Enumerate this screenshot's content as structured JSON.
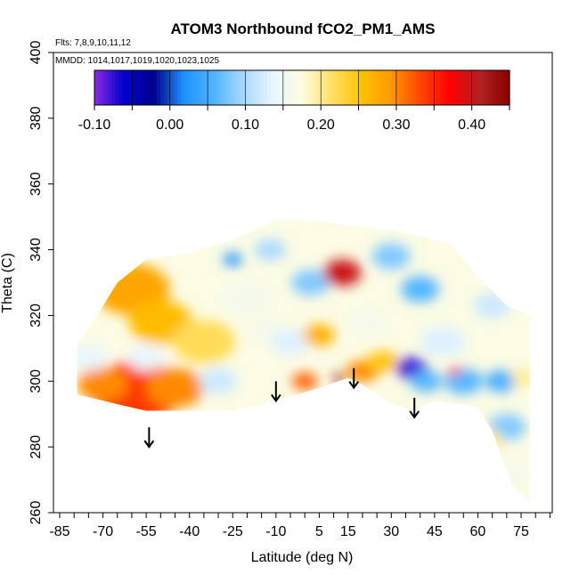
{
  "chart_data": {
    "type": "heatmap",
    "title": "ATOM3 Northbound fCO2_PM1_AMS",
    "notes": {
      "flights": "Flts: 7,8,9,10,11,12",
      "dates": "MMDD: 1014,1017,1019,1020,1023,1025"
    },
    "xlabel": "Latitude (deg N)",
    "ylabel": "Theta (C)",
    "xlim": [
      -85,
      85
    ],
    "ylim": [
      260,
      400
    ],
    "x_ticks": [
      "-85",
      "-70",
      "-55",
      "-40",
      "-25",
      "-10",
      "5",
      "15",
      "30",
      "45",
      "60",
      "75"
    ],
    "x_tick_values": [
      -85,
      -70,
      -55,
      -40,
      -25,
      -10,
      5,
      15,
      30,
      45,
      60,
      75
    ],
    "y_ticks": [
      "260",
      "280",
      "300",
      "320",
      "340",
      "360",
      "380",
      "400"
    ],
    "y_tick_values": [
      260,
      280,
      300,
      320,
      340,
      360,
      380,
      400
    ],
    "colorbar": {
      "min": -0.1,
      "max": 0.45,
      "tick_labels": [
        "-0.10",
        "0.00",
        "0.10",
        "0.20",
        "0.30",
        "0.40"
      ],
      "tick_values": [
        -0.1,
        0.0,
        0.1,
        0.2,
        0.3,
        0.4
      ],
      "colors": [
        "#8a2be2",
        "#0000cd",
        "#00008b",
        "#1e90ff",
        "#4db3ff",
        "#a7d8ff",
        "#e6f5ff",
        "#fffde0",
        "#ffe066",
        "#ffc200",
        "#ff9900",
        "#ff4500",
        "#ff0000",
        "#b22222",
        "#8b0000"
      ]
    },
    "tropopause_arrows": [
      {
        "lat": -54,
        "theta": 280
      },
      {
        "lat": -10,
        "theta": 294
      },
      {
        "lat": 17,
        "theta": 298
      },
      {
        "lat": 38,
        "theta": 289
      }
    ],
    "field_outline": {
      "top": [
        [
          -79,
          311
        ],
        [
          -72,
          320
        ],
        [
          -65,
          330
        ],
        [
          -55,
          337
        ],
        [
          -40,
          339
        ],
        [
          -25,
          343
        ],
        [
          -10,
          349
        ],
        [
          0,
          349
        ],
        [
          10,
          348
        ],
        [
          20,
          347
        ],
        [
          30,
          346
        ],
        [
          40,
          344
        ],
        [
          50,
          342
        ],
        [
          60,
          332
        ],
        [
          70,
          323
        ],
        [
          78,
          320
        ]
      ],
      "bottom": [
        [
          78,
          263
        ],
        [
          72,
          268
        ],
        [
          65,
          285
        ],
        [
          60,
          292
        ],
        [
          55,
          293
        ],
        [
          45,
          294
        ],
        [
          38,
          291
        ],
        [
          30,
          293
        ],
        [
          20,
          299
        ],
        [
          15,
          301
        ],
        [
          5,
          298
        ],
        [
          -10,
          294
        ],
        [
          -25,
          291
        ],
        [
          -40,
          291
        ],
        [
          -55,
          291
        ],
        [
          -65,
          293
        ],
        [
          -79,
          296
        ]
      ]
    },
    "regions": [
      {
        "lat": -60,
        "theta": 328,
        "value": 0.28,
        "r": 12
      },
      {
        "lat": -50,
        "theta": 318,
        "value": 0.26,
        "r": 10
      },
      {
        "lat": -58,
        "theta": 297,
        "value": 0.34,
        "r": 14
      },
      {
        "lat": -70,
        "theta": 299,
        "value": 0.3,
        "r": 8
      },
      {
        "lat": -45,
        "theta": 298,
        "value": 0.3,
        "r": 9
      },
      {
        "lat": -35,
        "theta": 312,
        "value": 0.22,
        "r": 10
      },
      {
        "lat": -75,
        "theta": 307,
        "value": 0.14,
        "r": 6
      },
      {
        "lat": -55,
        "theta": 307,
        "value": 0.14,
        "r": 6
      },
      {
        "lat": -30,
        "theta": 300,
        "value": 0.12,
        "r": 6
      },
      {
        "lat": -20,
        "theta": 325,
        "value": 0.16,
        "r": 8
      },
      {
        "lat": -12,
        "theta": 315,
        "value": 0.16,
        "r": 6
      },
      {
        "lat": -25,
        "theta": 337,
        "value": 0.02,
        "r": 3
      },
      {
        "lat": -12,
        "theta": 340,
        "value": 0.1,
        "r": 5
      },
      {
        "lat": 2,
        "theta": 330,
        "value": 0.08,
        "r": 6
      },
      {
        "lat": -5,
        "theta": 312,
        "value": 0.13,
        "r": 6
      },
      {
        "lat": 0,
        "theta": 300,
        "value": 0.32,
        "r": 4
      },
      {
        "lat": 5,
        "theta": 314,
        "value": 0.27,
        "r": 5
      },
      {
        "lat": 13,
        "theta": 333,
        "value": 0.4,
        "r": 6
      },
      {
        "lat": 12,
        "theta": 301,
        "value": 0.45,
        "r": 2
      },
      {
        "lat": 20,
        "theta": 303,
        "value": 0.3,
        "r": 5
      },
      {
        "lat": 22,
        "theta": 318,
        "value": 0.16,
        "r": 6
      },
      {
        "lat": 27,
        "theta": 306,
        "value": 0.25,
        "r": 5
      },
      {
        "lat": 30,
        "theta": 338,
        "value": 0.08,
        "r": 6
      },
      {
        "lat": 40,
        "theta": 328,
        "value": 0.06,
        "r": 6
      },
      {
        "lat": 37,
        "theta": 304,
        "value": -0.08,
        "r": 5
      },
      {
        "lat": 42,
        "theta": 300,
        "value": 0.06,
        "r": 5
      },
      {
        "lat": 48,
        "theta": 312,
        "value": 0.13,
        "r": 7
      },
      {
        "lat": 55,
        "theta": 300,
        "value": 0.06,
        "r": 6
      },
      {
        "lat": 52,
        "theta": 303,
        "value": 0.35,
        "r": 2
      },
      {
        "lat": 65,
        "theta": 323,
        "value": 0.12,
        "r": 6
      },
      {
        "lat": 68,
        "theta": 300,
        "value": 0.05,
        "r": 5
      },
      {
        "lat": 70,
        "theta": 286,
        "value": 0.08,
        "r": 6
      },
      {
        "lat": 62,
        "theta": 282,
        "value": 0.2,
        "r": 6
      },
      {
        "lat": 73,
        "theta": 272,
        "value": 0.16,
        "r": 5
      },
      {
        "lat": 76,
        "theta": 301,
        "value": 0.2,
        "r": 4
      }
    ],
    "legend": "top"
  }
}
